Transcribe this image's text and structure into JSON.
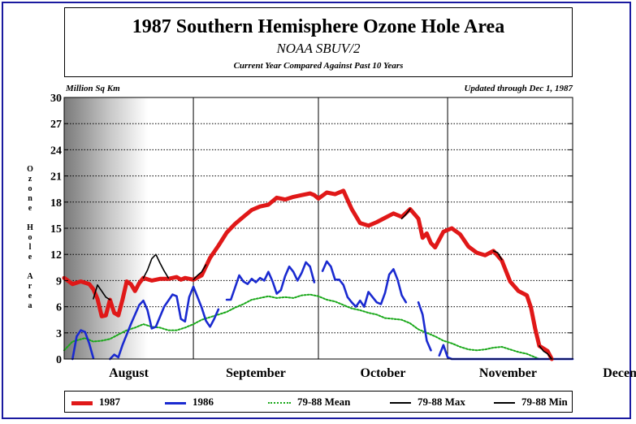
{
  "chart_data": {
    "type": "line",
    "title": "1987 Southern Hemisphere Ozone Hole Area",
    "subtitle": "NOAA SBUV/2",
    "subtitle2": "Current Year Compared Against Past 10 Years",
    "unit_label": "Million Sq Km",
    "updated_label": "Updated through Dec 1, 1987",
    "ylabel": "Ozone Hole Area",
    "ylim": [
      0,
      30
    ],
    "yticks": [
      0,
      3,
      6,
      9,
      12,
      15,
      18,
      21,
      24,
      27,
      30
    ],
    "xlim": [
      213,
      335
    ],
    "x_unit": "day of year",
    "month_boundaries": [
      244,
      274,
      305
    ],
    "month_labels": [
      {
        "label": "August",
        "x": 228.5
      },
      {
        "label": "September",
        "x": 259
      },
      {
        "label": "October",
        "x": 289.5
      },
      {
        "label": "November",
        "x": 319.5
      },
      {
        "label": "December",
        "x": 349
      }
    ],
    "grid": true,
    "legend_position": "bottom",
    "series": [
      {
        "name": "1987",
        "color": "#e01818",
        "style": "solid-thick",
        "segments": [
          [
            [
              213,
              9.3
            ],
            [
              215,
              8.6
            ],
            [
              217,
              8.9
            ],
            [
              219,
              8.6
            ],
            [
              220,
              8.0
            ],
            [
              221,
              6.9
            ],
            [
              222,
              4.9
            ],
            [
              223,
              5.0
            ],
            [
              224,
              6.8
            ],
            [
              225,
              5.3
            ],
            [
              226,
              5.0
            ],
            [
              227,
              6.8
            ],
            [
              228,
              8.9
            ],
            [
              229,
              8.6
            ],
            [
              230,
              7.8
            ],
            [
              231,
              8.7
            ],
            [
              232,
              9.3
            ],
            [
              234,
              9.0
            ],
            [
              236,
              9.2
            ],
            [
              238,
              9.2
            ],
            [
              240,
              9.4
            ],
            [
              241,
              9.1
            ],
            [
              242,
              9.3
            ],
            [
              244,
              9.1
            ],
            [
              246,
              9.6
            ],
            [
              248,
              11.6
            ],
            [
              250,
              13.0
            ],
            [
              252,
              14.5
            ],
            [
              254,
              15.5
            ],
            [
              256,
              16.3
            ],
            [
              258,
              17.1
            ],
            [
              260,
              17.5
            ],
            [
              262,
              17.7
            ],
            [
              264,
              18.5
            ],
            [
              266,
              18.3
            ],
            [
              268,
              18.6
            ],
            [
              270,
              18.8
            ],
            [
              272,
              19.0
            ],
            [
              273,
              18.8
            ],
            [
              274,
              18.4
            ],
            [
              276,
              19.1
            ],
            [
              278,
              18.9
            ],
            [
              280,
              19.3
            ],
            [
              282,
              17.2
            ],
            [
              284,
              15.6
            ],
            [
              286,
              15.3
            ],
            [
              288,
              15.7
            ],
            [
              290,
              16.2
            ],
            [
              292,
              16.7
            ],
            [
              294,
              16.3
            ],
            [
              296,
              17.2
            ],
            [
              298,
              16.1
            ],
            [
              299,
              13.9
            ],
            [
              300,
              14.4
            ],
            [
              301,
              13.3
            ],
            [
              302,
              12.8
            ],
            [
              304,
              14.6
            ],
            [
              306,
              15.0
            ],
            [
              308,
              14.3
            ],
            [
              310,
              12.9
            ],
            [
              312,
              12.2
            ],
            [
              314,
              11.9
            ],
            [
              316,
              12.4
            ],
            [
              318,
              11.3
            ],
            [
              320,
              8.9
            ],
            [
              322,
              7.8
            ],
            [
              324,
              7.3
            ],
            [
              325,
              5.9
            ],
            [
              326,
              3.5
            ],
            [
              327,
              1.5
            ],
            [
              329,
              0.9
            ],
            [
              330,
              0.0
            ]
          ]
        ]
      },
      {
        "name": "1986",
        "color": "#1a2ad0",
        "style": "solid",
        "segments": [
          [
            [
              215,
              0.0
            ],
            [
              216,
              2.6
            ],
            [
              217,
              3.3
            ],
            [
              218,
              3.1
            ],
            [
              219,
              1.8
            ],
            [
              220,
              0.1
            ]
          ],
          [
            [
              224,
              0.0
            ],
            [
              225,
              0.5
            ],
            [
              226,
              0.2
            ],
            [
              227,
              1.6
            ],
            [
              229,
              4.0
            ],
            [
              231,
              6.2
            ],
            [
              232,
              6.7
            ],
            [
              233,
              5.6
            ],
            [
              234,
              3.5
            ],
            [
              235,
              3.7
            ],
            [
              237,
              6.0
            ],
            [
              239,
              7.4
            ],
            [
              240,
              7.2
            ],
            [
              241,
              4.6
            ],
            [
              242,
              4.3
            ],
            [
              243,
              7.1
            ],
            [
              244,
              8.3
            ],
            [
              246,
              5.9
            ],
            [
              247,
              4.4
            ],
            [
              248,
              3.7
            ],
            [
              249,
              4.6
            ],
            [
              250,
              5.7
            ]
          ],
          [
            [
              252,
              6.8
            ],
            [
              253,
              6.8
            ],
            [
              254,
              8.2
            ],
            [
              255,
              9.6
            ],
            [
              256,
              8.9
            ],
            [
              257,
              8.6
            ],
            [
              258,
              9.2
            ],
            [
              259,
              8.8
            ],
            [
              260,
              9.3
            ],
            [
              261,
              9.0
            ],
            [
              262,
              10.0
            ],
            [
              263,
              8.9
            ],
            [
              264,
              7.5
            ],
            [
              265,
              7.9
            ],
            [
              266,
              9.5
            ],
            [
              267,
              10.6
            ],
            [
              268,
              10.0
            ],
            [
              269,
              9.0
            ],
            [
              270,
              9.9
            ],
            [
              271,
              11.1
            ],
            [
              272,
              10.6
            ],
            [
              273,
              8.8
            ]
          ],
          [
            [
              275,
              10.1
            ],
            [
              276,
              11.2
            ],
            [
              277,
              10.6
            ],
            [
              278,
              9.1
            ],
            [
              279,
              9.1
            ],
            [
              280,
              8.5
            ],
            [
              281,
              7.1
            ],
            [
              282,
              6.5
            ],
            [
              283,
              6.0
            ],
            [
              284,
              6.7
            ],
            [
              285,
              6.0
            ],
            [
              286,
              7.7
            ],
            [
              287,
              7.1
            ],
            [
              288,
              6.5
            ],
            [
              289,
              6.3
            ],
            [
              290,
              7.6
            ],
            [
              291,
              9.7
            ],
            [
              292,
              10.3
            ],
            [
              293,
              9.1
            ],
            [
              294,
              7.3
            ],
            [
              295,
              6.5
            ]
          ],
          [
            [
              298,
              6.5
            ],
            [
              299,
              5.1
            ],
            [
              300,
              2.1
            ],
            [
              301,
              1.0
            ]
          ],
          [
            [
              303,
              0.4
            ],
            [
              304,
              1.6
            ],
            [
              305,
              0.2
            ],
            [
              306,
              0.0
            ],
            [
              335,
              0.0
            ]
          ]
        ]
      },
      {
        "name": "79-88 Mean",
        "color": "#1aa81a",
        "style": "dotted",
        "segments": [
          [
            [
              213,
              1.0
            ],
            [
              215,
              2.0
            ],
            [
              218,
              2.4
            ],
            [
              220,
              2.0
            ],
            [
              222,
              2.1
            ],
            [
              224,
              2.3
            ],
            [
              226,
              2.8
            ],
            [
              228,
              3.3
            ],
            [
              230,
              3.6
            ],
            [
              232,
              4.0
            ],
            [
              234,
              3.7
            ],
            [
              236,
              3.6
            ],
            [
              238,
              3.3
            ],
            [
              240,
              3.3
            ],
            [
              242,
              3.6
            ],
            [
              244,
              4.0
            ],
            [
              246,
              4.5
            ],
            [
              248,
              4.8
            ],
            [
              250,
              5.1
            ],
            [
              252,
              5.4
            ],
            [
              254,
              5.9
            ],
            [
              256,
              6.3
            ],
            [
              258,
              6.8
            ],
            [
              260,
              7.0
            ],
            [
              262,
              7.2
            ],
            [
              264,
              7.0
            ],
            [
              266,
              7.1
            ],
            [
              268,
              7.0
            ],
            [
              270,
              7.3
            ],
            [
              272,
              7.4
            ],
            [
              274,
              7.2
            ],
            [
              276,
              6.8
            ],
            [
              278,
              6.6
            ],
            [
              280,
              6.2
            ],
            [
              282,
              5.8
            ],
            [
              284,
              5.6
            ],
            [
              286,
              5.3
            ],
            [
              288,
              5.1
            ],
            [
              290,
              4.7
            ],
            [
              292,
              4.6
            ],
            [
              294,
              4.5
            ],
            [
              296,
              4.1
            ],
            [
              298,
              3.4
            ],
            [
              300,
              3.0
            ],
            [
              302,
              2.6
            ],
            [
              304,
              2.1
            ],
            [
              306,
              1.8
            ],
            [
              308,
              1.4
            ],
            [
              310,
              1.1
            ],
            [
              312,
              1.0
            ],
            [
              314,
              1.1
            ],
            [
              316,
              1.3
            ],
            [
              318,
              1.4
            ],
            [
              320,
              1.1
            ],
            [
              322,
              0.8
            ],
            [
              324,
              0.6
            ],
            [
              326,
              0.2
            ],
            [
              327,
              0.0
            ]
          ]
        ]
      },
      {
        "name": "79-88 Max",
        "color": "#000000",
        "style": "solid-thin",
        "segments": [
          [
            [
              220,
              6.9
            ],
            [
              221,
              8.5
            ],
            [
              222,
              7.8
            ],
            [
              223,
              7.1
            ],
            [
              224,
              6.8
            ]
          ],
          [
            [
              232,
              9.3
            ],
            [
              233,
              10.2
            ],
            [
              234,
              11.5
            ],
            [
              235,
              12.0
            ],
            [
              236,
              11.0
            ],
            [
              237,
              10.1
            ],
            [
              238,
              9.3
            ]
          ],
          [
            [
              244,
              9.1
            ],
            [
              245,
              9.6
            ],
            [
              246,
              10.0
            ],
            [
              247,
              10.8
            ]
          ],
          [
            [
              294,
              16.1
            ],
            [
              295,
              16.6
            ],
            [
              296,
              17.2
            ]
          ],
          [
            [
              316,
              12.4
            ],
            [
              317,
              12.2
            ],
            [
              318,
              11.4
            ]
          ],
          [
            [
              327,
              1.5
            ],
            [
              328,
              0.9
            ],
            [
              329,
              0.6
            ],
            [
              330,
              0.0
            ]
          ]
        ]
      },
      {
        "name": "79-88 Min",
        "color": "#000000",
        "style": "solid-thin",
        "segments": []
      }
    ]
  }
}
